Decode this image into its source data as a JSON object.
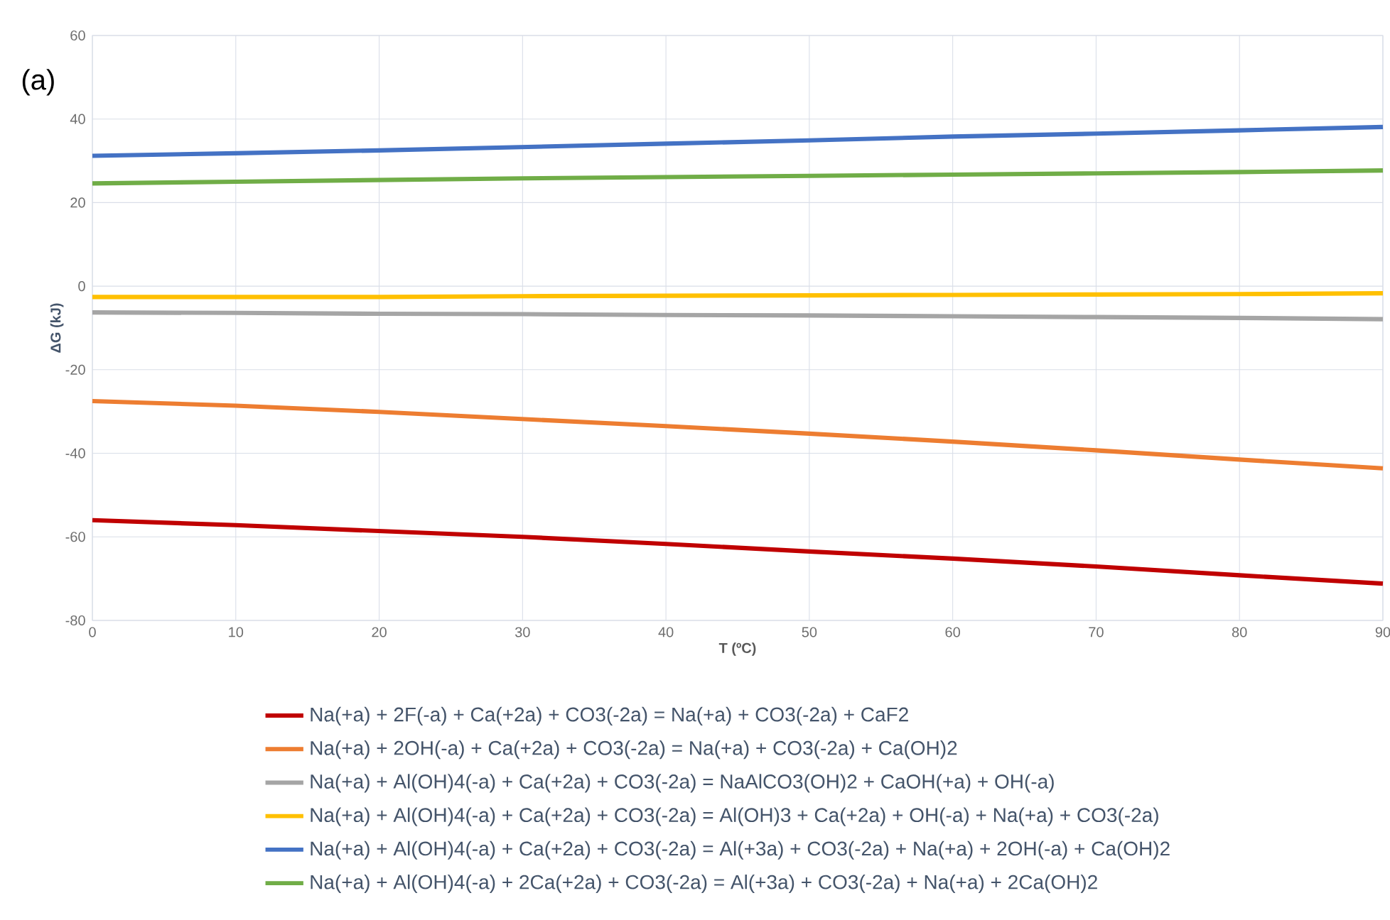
{
  "chart_data": {
    "type": "line",
    "xlabel": "T (ºC)",
    "ylabel": "ΔG (kJ)",
    "annotations": [
      "(a)"
    ],
    "x": [
      0,
      10,
      20,
      30,
      40,
      50,
      60,
      70,
      80,
      90
    ],
    "xlim": [
      0,
      90
    ],
    "ylim": [
      -80,
      60
    ],
    "xticks": [
      0,
      10,
      20,
      30,
      40,
      50,
      60,
      70,
      80,
      90
    ],
    "yticks": [
      -80,
      -60,
      -40,
      -20,
      0,
      20,
      40,
      60
    ],
    "grid": true,
    "legend": "bottom",
    "marker": "none",
    "line_style": "solid",
    "series": [
      {
        "name": "Na(+a) + 2F(-a) + Ca(+2a) + CO3(-2a) = Na(+a) + CO3(-2a) + CaF2",
        "color": "#c00000",
        "values": [
          -56,
          -57.2,
          -58.6,
          -60,
          -61.7,
          -63.5,
          -65.2,
          -67.1,
          -69.2,
          -71.2
        ]
      },
      {
        "name": "Na(+a) + 2OH(-a) + Ca(+2a) + CO3(-2a) = Na(+a) + CO3(-2a) + Ca(OH)2",
        "color": "#ed7d31",
        "values": [
          -27.5,
          -28.6,
          -30.1,
          -31.8,
          -33.5,
          -35.3,
          -37.2,
          -39.3,
          -41.5,
          -43.6
        ]
      },
      {
        "name": "Na(+a) + Al(OH)4(-a) + Ca(+2a) + CO3(-2a) = NaAlCO3(OH)2 + CaOH(+a) + OH(-a)",
        "color": "#a5a5a5",
        "values": [
          -6.3,
          -6.4,
          -6.6,
          -6.7,
          -6.9,
          -7.0,
          -7.2,
          -7.4,
          -7.6,
          -7.9
        ]
      },
      {
        "name": "Na(+a) + Al(OH)4(-a) + Ca(+2a) + CO3(-2a) = Al(OH)3 + Ca(+2a) + OH(-a) + Na(+a) + CO3(-2a)",
        "color": "#ffc000",
        "values": [
          -2.6,
          -2.6,
          -2.6,
          -2.4,
          -2.3,
          -2.2,
          -2.1,
          -2.0,
          -1.9,
          -1.7
        ]
      },
      {
        "name": "Na(+a) + Al(OH)4(-a) + Ca(+2a) + CO3(-2a) = Al(+3a) + CO3(-2a) + Na(+a) + 2OH(-a) + Ca(OH)2",
        "color": "#4472c4",
        "values": [
          31.2,
          31.8,
          32.5,
          33.3,
          34.1,
          34.9,
          35.8,
          36.5,
          37.3,
          38.1
        ]
      },
      {
        "name": "Na(+a) + Al(OH)4(-a) + 2Ca(+2a) + CO3(-2a) = Al(+3a) + CO3(-2a) + Na(+a) + 2Ca(OH)2",
        "color": "#70ad47",
        "values": [
          24.6,
          25.0,
          25.4,
          25.8,
          26.1,
          26.4,
          26.7,
          27.0,
          27.3,
          27.7
        ]
      }
    ]
  }
}
